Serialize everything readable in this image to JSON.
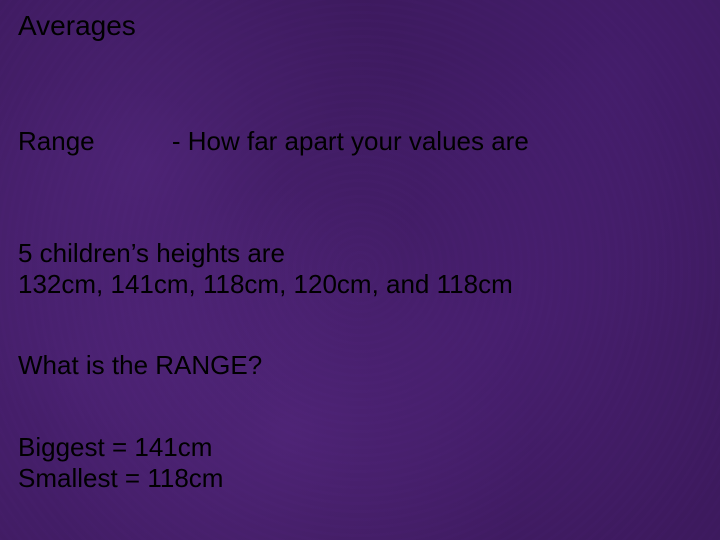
{
  "background_color": "#3d1a5e",
  "text_color": "#000000",
  "font_family": "Comic Sans MS",
  "title_fontsize": 28,
  "body_fontsize": 26,
  "title": "Averages",
  "definition": {
    "term": "Range",
    "text": "- How far apart your values are"
  },
  "heights": {
    "intro": "5 children’s heights are",
    "values": "132cm, 141cm, 118cm, 120cm, and 118cm"
  },
  "question": "What is the RANGE?",
  "answers": {
    "biggest": "Biggest = 141cm",
    "smallest": "Smallest = 118cm"
  }
}
